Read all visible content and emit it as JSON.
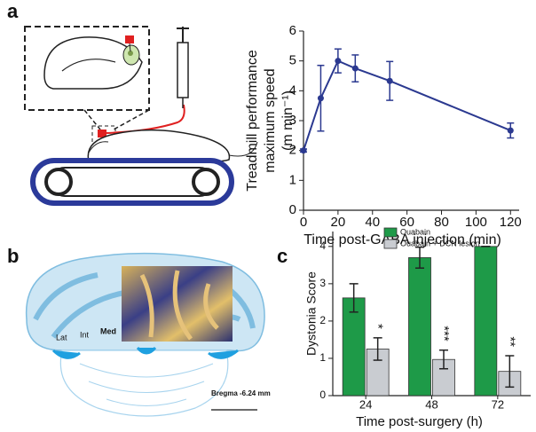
{
  "figure": {
    "panel_labels": [
      "a",
      "b",
      "c"
    ],
    "brain_labels": [
      "Lat",
      "Int",
      "Med"
    ],
    "scale_label": "Bregma -6.24 mm"
  },
  "chart_data": [
    {
      "type": "line",
      "x_label": "Time post-GABA injection (min)",
      "y_label": [
        "Treadmill performance",
        "maximum speed",
        "(m min⁻¹)"
      ],
      "x": [
        0,
        10,
        20,
        30,
        50,
        120
      ],
      "values": [
        2,
        3.75,
        5,
        4.75,
        4.33,
        2.67
      ],
      "errors": [
        0.05,
        1.1,
        0.4,
        0.45,
        0.65,
        0.25
      ],
      "color": "#2b3990",
      "xlim": [
        0,
        125
      ],
      "xticks": [
        0,
        20,
        40,
        60,
        80,
        100,
        120
      ],
      "ylim": [
        0,
        6
      ],
      "yticks": [
        0,
        1,
        2,
        3,
        4,
        5,
        6
      ]
    },
    {
      "type": "bar",
      "x_label": "Time post-surgery (h)",
      "y_label": "Dystonia Score",
      "categories": [
        "24",
        "48",
        "72"
      ],
      "series": [
        {
          "name": "Ouabain",
          "color": "#1e9a48",
          "values": [
            2.62,
            3.7,
            4.0
          ],
          "errors": [
            0.38,
            0.28,
            0
          ]
        },
        {
          "name": "Ouabain + DCN lesion",
          "color": "#c9ccd1",
          "values": [
            1.25,
            0.97,
            0.65
          ],
          "errors": [
            0.3,
            0.25,
            0.42
          ]
        }
      ],
      "annotations": [
        "*",
        "***",
        "**"
      ],
      "legend": "top",
      "ylim": [
        0,
        4.4
      ],
      "yticks": [
        0,
        1,
        2,
        3,
        4
      ]
    }
  ]
}
